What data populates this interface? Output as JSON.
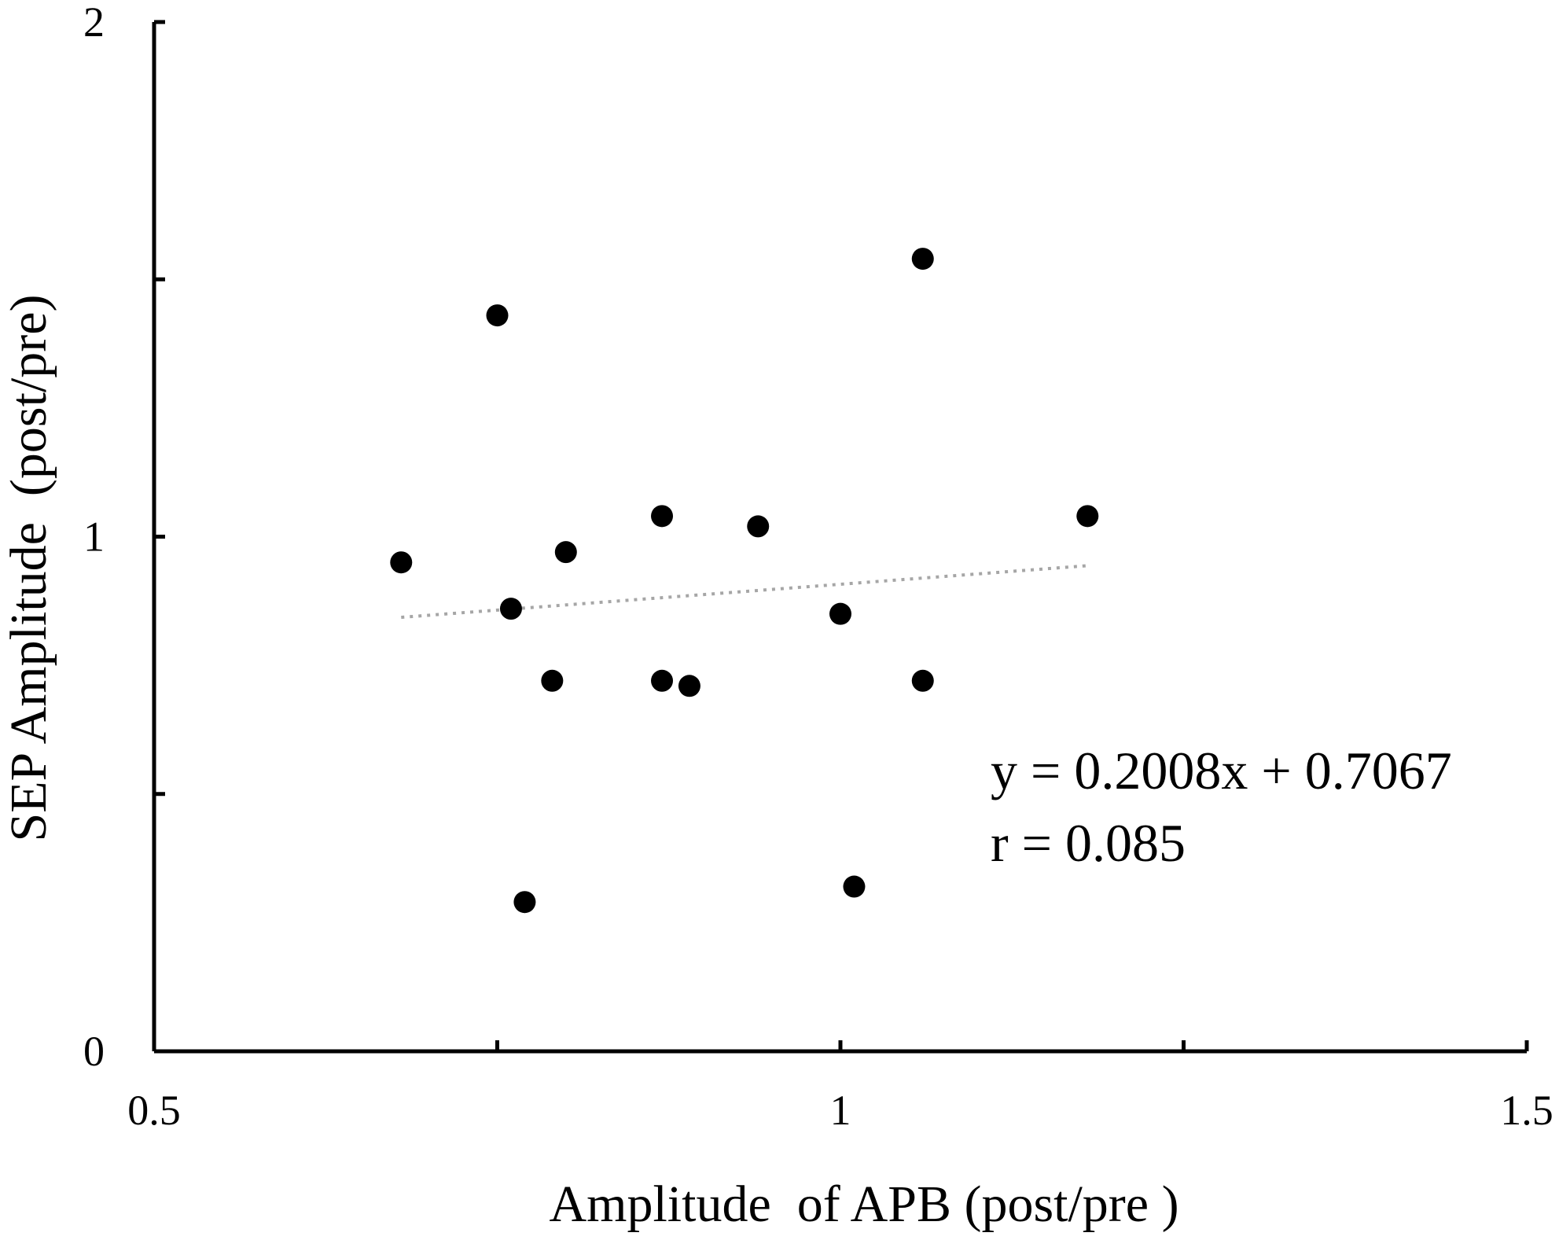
{
  "chart_data": {
    "type": "scatter",
    "title": "",
    "xlabel": "Amplitude  of APB (post/pre )",
    "ylabel": "SEP Amplitude  (post/pre)",
    "xlim": [
      0.5,
      1.5
    ],
    "ylim": [
      0,
      2
    ],
    "x_ticks": [
      0.5,
      0.75,
      1,
      1.25,
      1.5
    ],
    "y_ticks": [
      0,
      0.5,
      1,
      1.5,
      2
    ],
    "x_tick_labels": [
      "0.5",
      "1",
      "1.5"
    ],
    "y_tick_labels": [
      "0",
      "1",
      "2"
    ],
    "grid": false,
    "legend": "none",
    "marker_color": "#000000",
    "trendline_color": "#a6a6a6",
    "series": [
      {
        "x": [
          0.68,
          0.75,
          0.76,
          0.77,
          0.79,
          0.8,
          0.87,
          0.87,
          0.89,
          0.94,
          1.0,
          1.01,
          1.06,
          1.06,
          1.18
        ],
        "y": [
          0.95,
          1.43,
          0.86,
          0.29,
          0.72,
          0.97,
          1.04,
          0.72,
          0.71,
          1.02,
          0.85,
          0.32,
          1.54,
          0.72,
          1.04
        ]
      }
    ],
    "trendline": {
      "slope": 0.2008,
      "intercept": 0.7067,
      "x_range": [
        0.68,
        1.18
      ]
    },
    "annotations": {
      "equation": "y = 0.2008x + 0.7067",
      "correlation": "r = 0.085"
    }
  }
}
